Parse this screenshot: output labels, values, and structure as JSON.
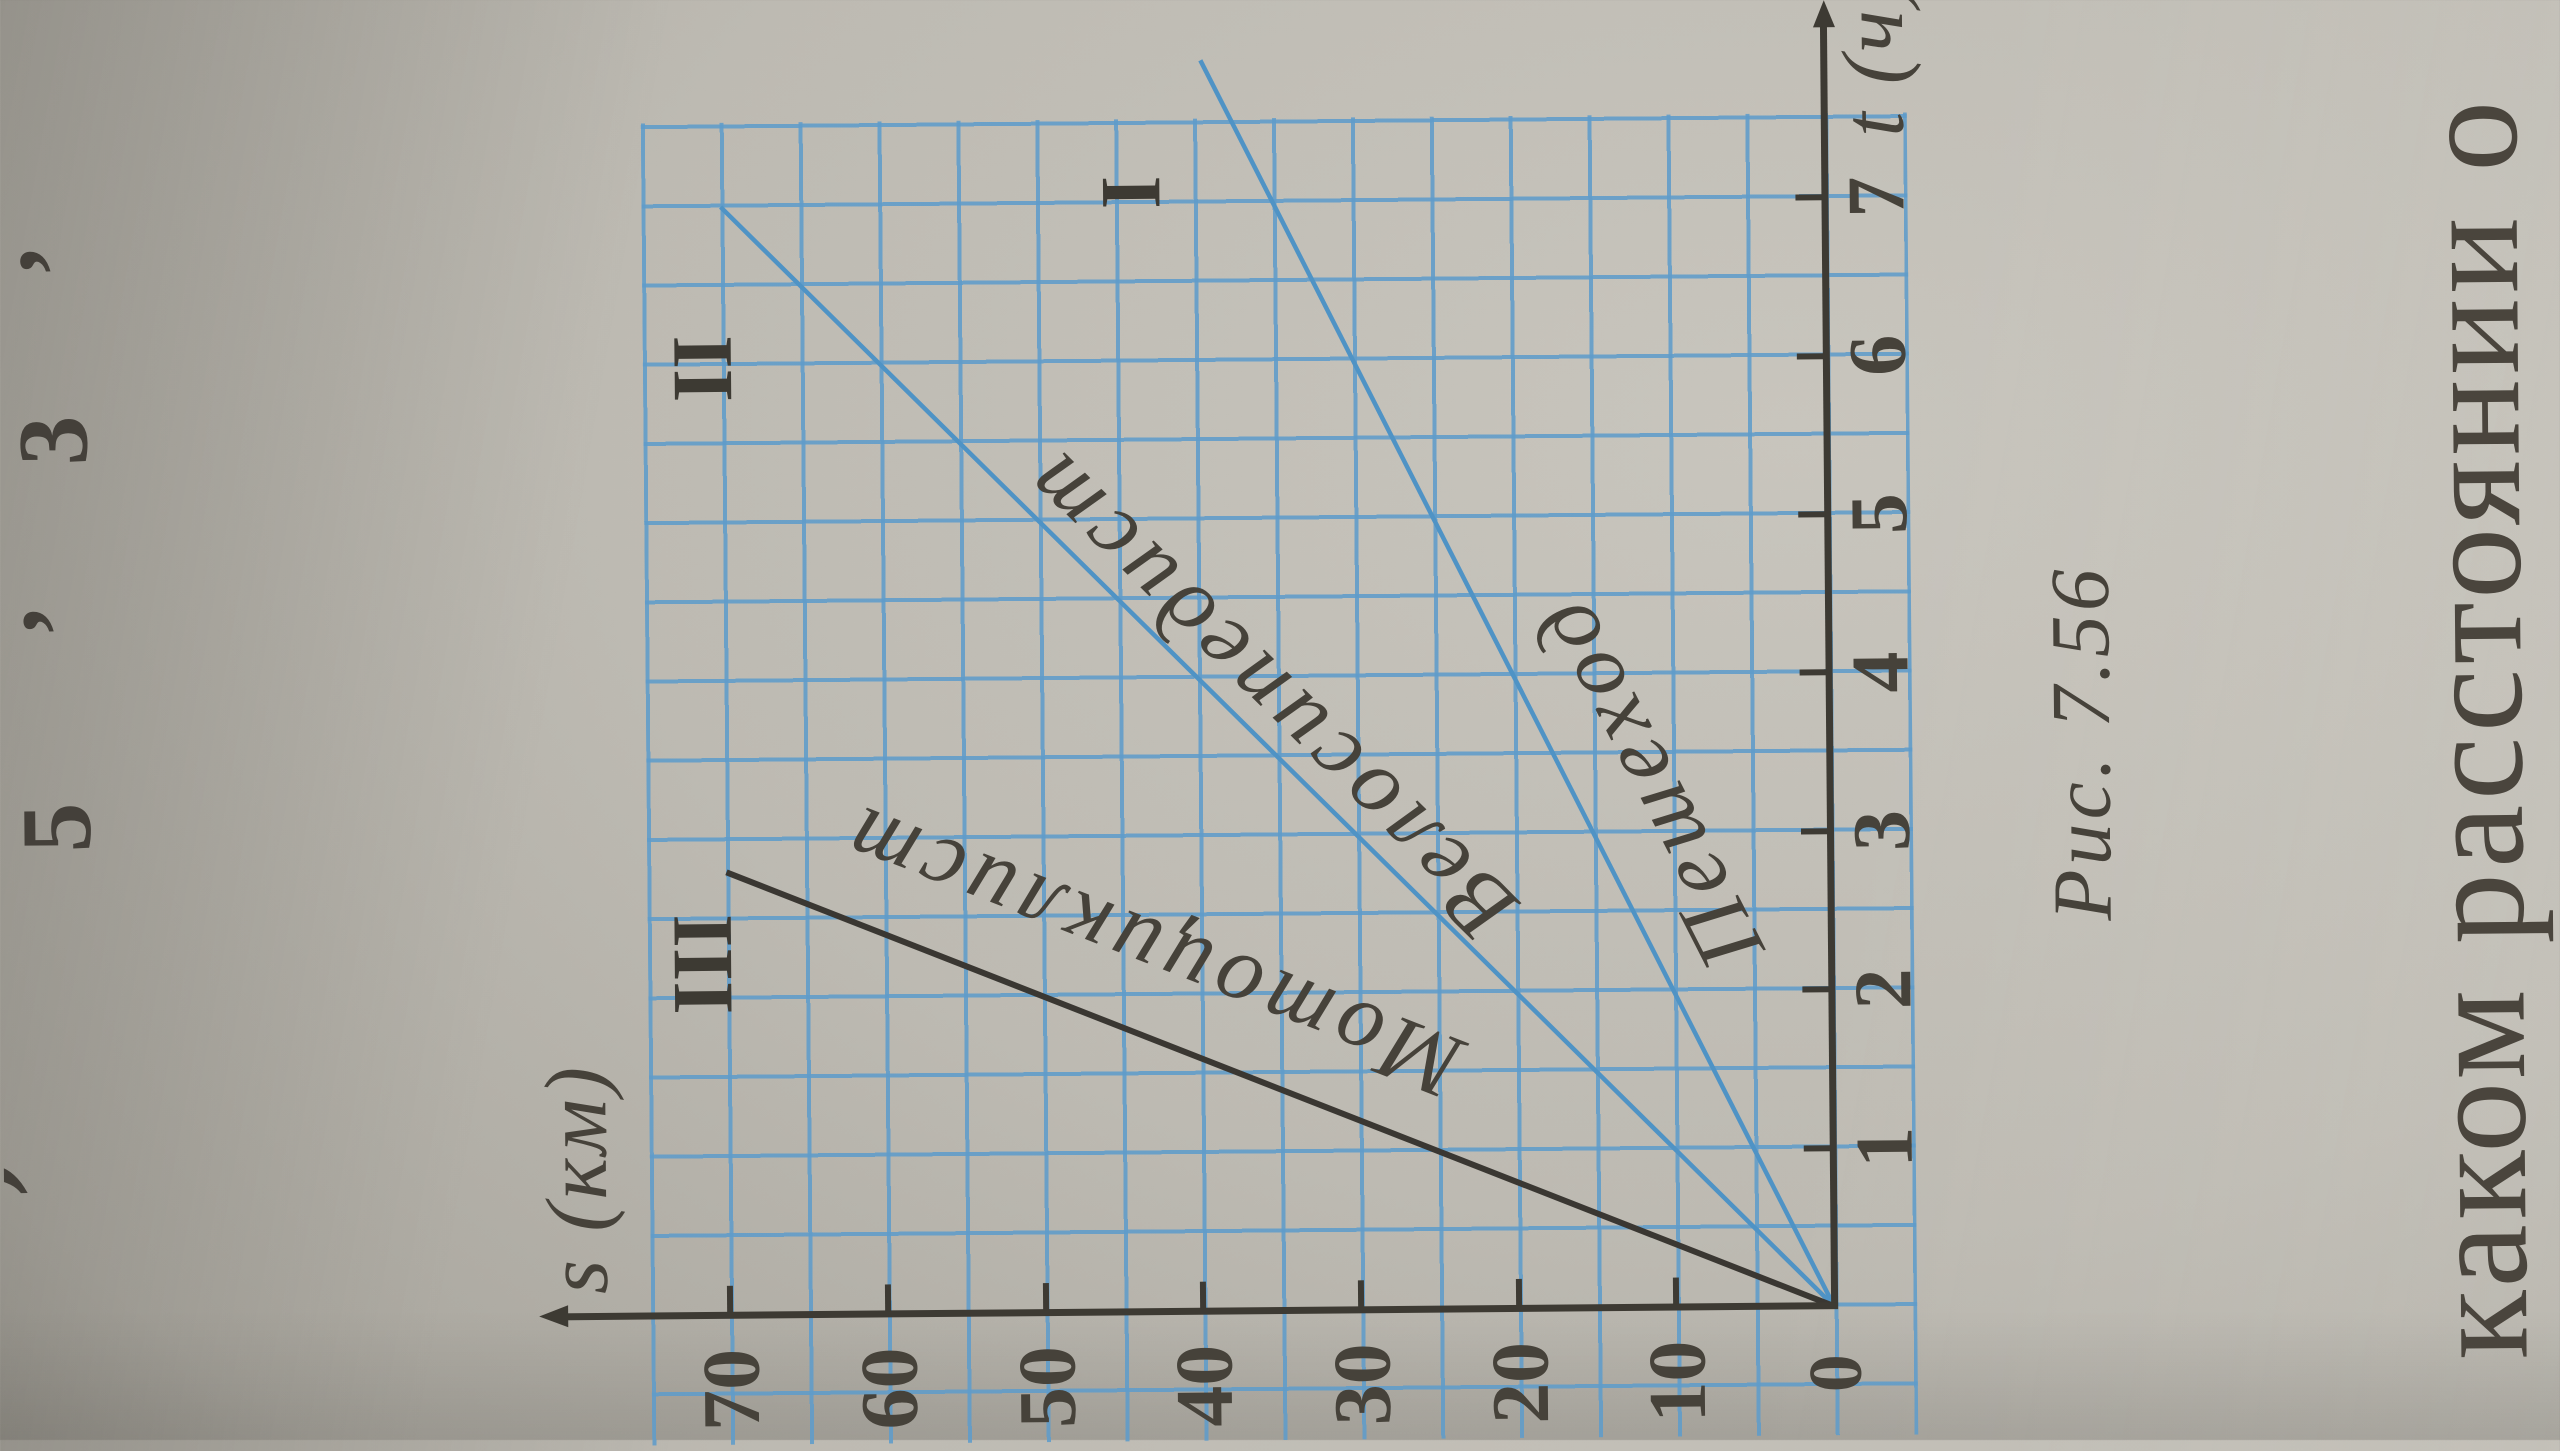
{
  "page": {
    "caption": "Рис. 7.56",
    "problem_text": "каком расстоянии о",
    "cut_fragments_top": [
      {
        "text": "5",
        "u": 598,
        "kind": "digit"
      },
      {
        "text": ",",
        "u": 818,
        "kind": "comma"
      },
      {
        "text": "3",
        "u": 985,
        "kind": "digit"
      },
      {
        "text": ",",
        "u": 1178,
        "kind": "comma"
      },
      {
        "text": ")",
        "u": 254,
        "kind": "paren"
      }
    ]
  },
  "chart_data": {
    "type": "line",
    "title": "",
    "xlabel": "t (ч)",
    "ylabel": "s (км)",
    "origin_label": "0",
    "x_ticks": [
      1,
      2,
      3,
      4,
      5,
      6,
      7
    ],
    "y_ticks": [
      10,
      20,
      30,
      40,
      50,
      60,
      70
    ],
    "xlim": [
      0,
      8.1
    ],
    "ylim": [
      0,
      81
    ],
    "grid": true,
    "grid_cell": {
      "t_hours": 0.5,
      "s_km": 5
    },
    "series": [
      {
        "name": "Пешеход",
        "numeral": "I",
        "speed_kmh": 5,
        "points": [
          [
            0,
            0
          ],
          [
            7.9,
            39.5
          ]
        ],
        "color": "#4f93c5",
        "width": 4.5,
        "label_anchor": {
          "t": 3.32,
          "s": 11.6,
          "angle_deg": -26.5
        },
        "numeral_anchor": {
          "t": 7.07,
          "s": 44.0
        }
      },
      {
        "name": "Велосипедист",
        "numeral": "II",
        "speed_kmh": 10,
        "points": [
          [
            0,
            0
          ],
          [
            7,
            70
          ]
        ],
        "color": "#4f93c5",
        "width": 4.5,
        "label_anchor": {
          "t": 3.89,
          "s": 35.6,
          "angle_deg": -44.9
        },
        "numeral_anchor": {
          "t": 5.98,
          "s": 71.3
        }
      },
      {
        "name": "Мотоциклист",
        "numeral": "III",
        "speed_kmh": 25,
        "points": [
          [
            0,
            0
          ],
          [
            2.8,
            70
          ]
        ],
        "color": "#3a3732",
        "width": 6,
        "label_anchor": {
          "t": 2.28,
          "s": 43.1,
          "angle_deg": -68.1
        },
        "numeral_anchor": {
          "t": 2.22,
          "s": 71.6
        }
      }
    ]
  }
}
